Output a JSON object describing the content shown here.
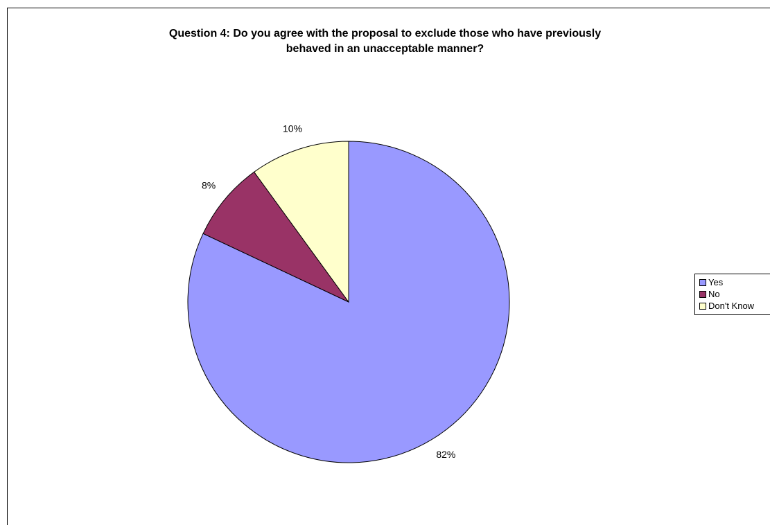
{
  "chart_data": {
    "type": "pie",
    "title": "Question 4: Do you agree with the proposal to exclude those who have previously behaved in an unacceptable manner?",
    "title_lines": [
      "Question 4: Do you agree with the proposal to exclude those who have previously",
      "behaved in an unacceptable manner?"
    ],
    "categories": [
      "Yes",
      "No",
      "Don't Know"
    ],
    "values": [
      82,
      8,
      10
    ],
    "labels": [
      "82%",
      "8%",
      "10%"
    ],
    "colors": [
      "#9999ff",
      "#993366",
      "#ffffcc"
    ],
    "legend": {
      "placement": "right",
      "entries": [
        "Yes",
        "No",
        "Don't Know"
      ]
    }
  }
}
